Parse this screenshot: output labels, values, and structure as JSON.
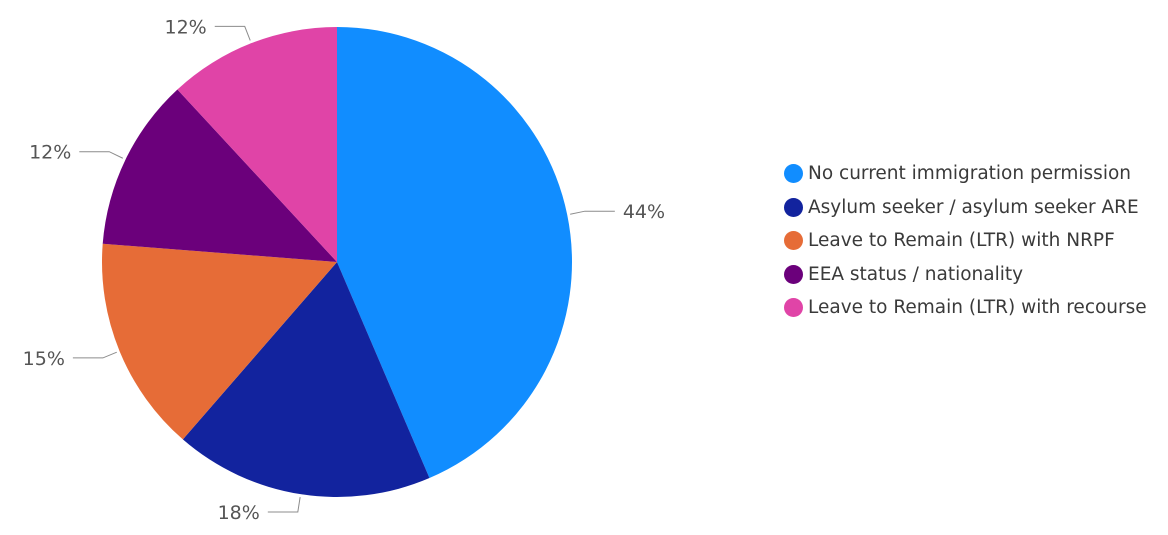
{
  "chart_data": {
    "type": "pie",
    "title": "",
    "start_angle_deg": 0,
    "direction": "clockwise",
    "legend_position": "right",
    "series": [
      {
        "name": "No current immigration permission",
        "value": 44,
        "label": "44%",
        "color": "#118DFF"
      },
      {
        "name": "Asylum seeker / asylum seeker ARE",
        "value": 18,
        "label": "18%",
        "color": "#12239E"
      },
      {
        "name": "Leave to Remain (LTR) with NRPF",
        "value": 15,
        "label": "15%",
        "color": "#E66C37"
      },
      {
        "name": "EEA status / nationality",
        "value": 12,
        "label": "12%",
        "color": "#6B007B"
      },
      {
        "name": "Leave to Remain (LTR) with recourse",
        "value": 12,
        "label": "12%",
        "color": "#E044A7"
      }
    ]
  }
}
